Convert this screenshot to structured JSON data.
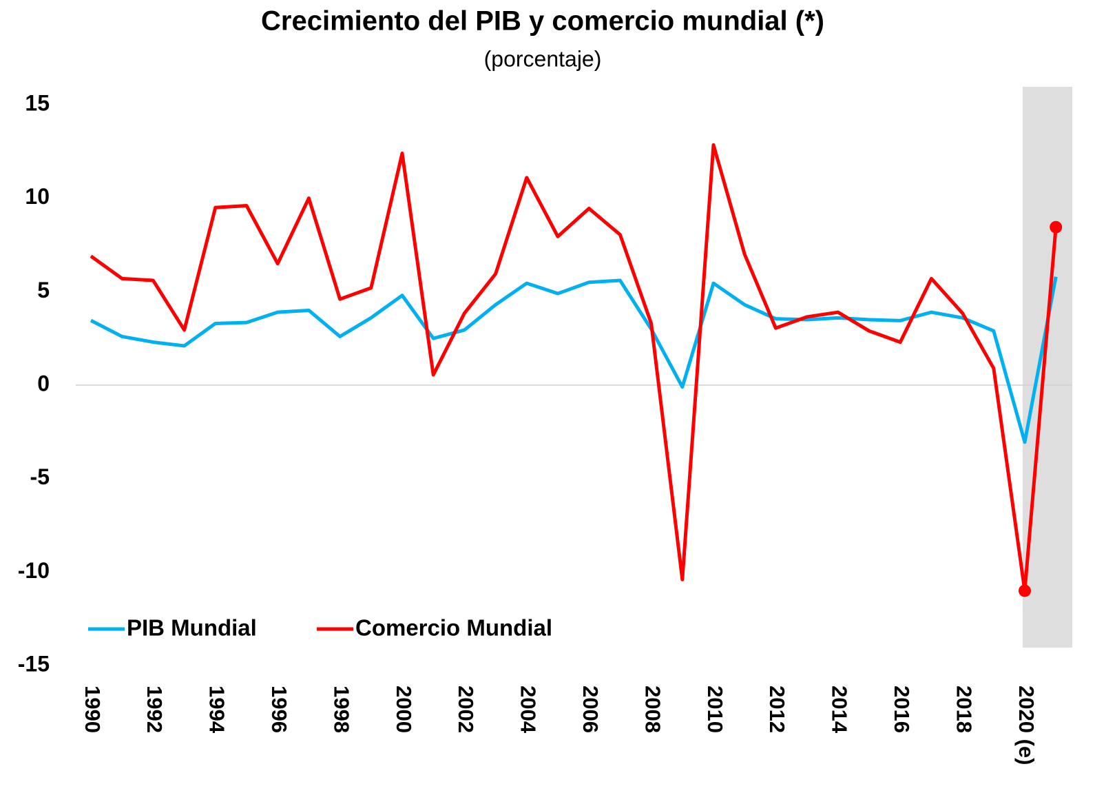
{
  "chart_data": {
    "type": "line",
    "title": "Crecimiento del PIB y comercio mundial (*)",
    "subtitle": "(porcentaje)",
    "categories": [
      "1990",
      null,
      "1992",
      null,
      "1994",
      null,
      "1996",
      null,
      "1998",
      null,
      "2000",
      null,
      "2002",
      null,
      "2004",
      null,
      "2006",
      null,
      "2008",
      null,
      "2010",
      null,
      "2012",
      null,
      "2014",
      null,
      "2016",
      null,
      "2018",
      null,
      "2020 (e)",
      null
    ],
    "series": [
      {
        "name": "PIB Mundial",
        "color": "#00b0f0",
        "values": [
          3.46,
          2.6,
          2.3,
          2.1,
          3.3,
          3.35,
          3.9,
          4.0,
          2.6,
          3.6,
          4.8,
          2.5,
          2.95,
          4.3,
          5.45,
          4.9,
          5.5,
          5.6,
          3.0,
          -0.1,
          5.45,
          4.3,
          3.55,
          3.5,
          3.6,
          3.5,
          3.45,
          3.9,
          3.6,
          2.9,
          -3.05,
          5.8
        ]
      },
      {
        "name": "Comercio Mundial",
        "color": "#ff0000",
        "values": [
          6.9,
          5.7,
          5.6,
          2.95,
          9.5,
          9.6,
          6.5,
          10.0,
          4.6,
          5.2,
          12.4,
          0.55,
          3.85,
          5.95,
          11.1,
          7.95,
          9.45,
          8.05,
          3.3,
          -10.4,
          12.85,
          7.0,
          3.05,
          3.65,
          3.9,
          2.9,
          2.3,
          5.7,
          3.85,
          0.9,
          -11.0,
          8.45
        ]
      }
    ],
    "ylim": [
      -15,
      15
    ],
    "yticks": [
      15,
      10,
      5,
      0,
      -5,
      -10,
      -15
    ]
  }
}
